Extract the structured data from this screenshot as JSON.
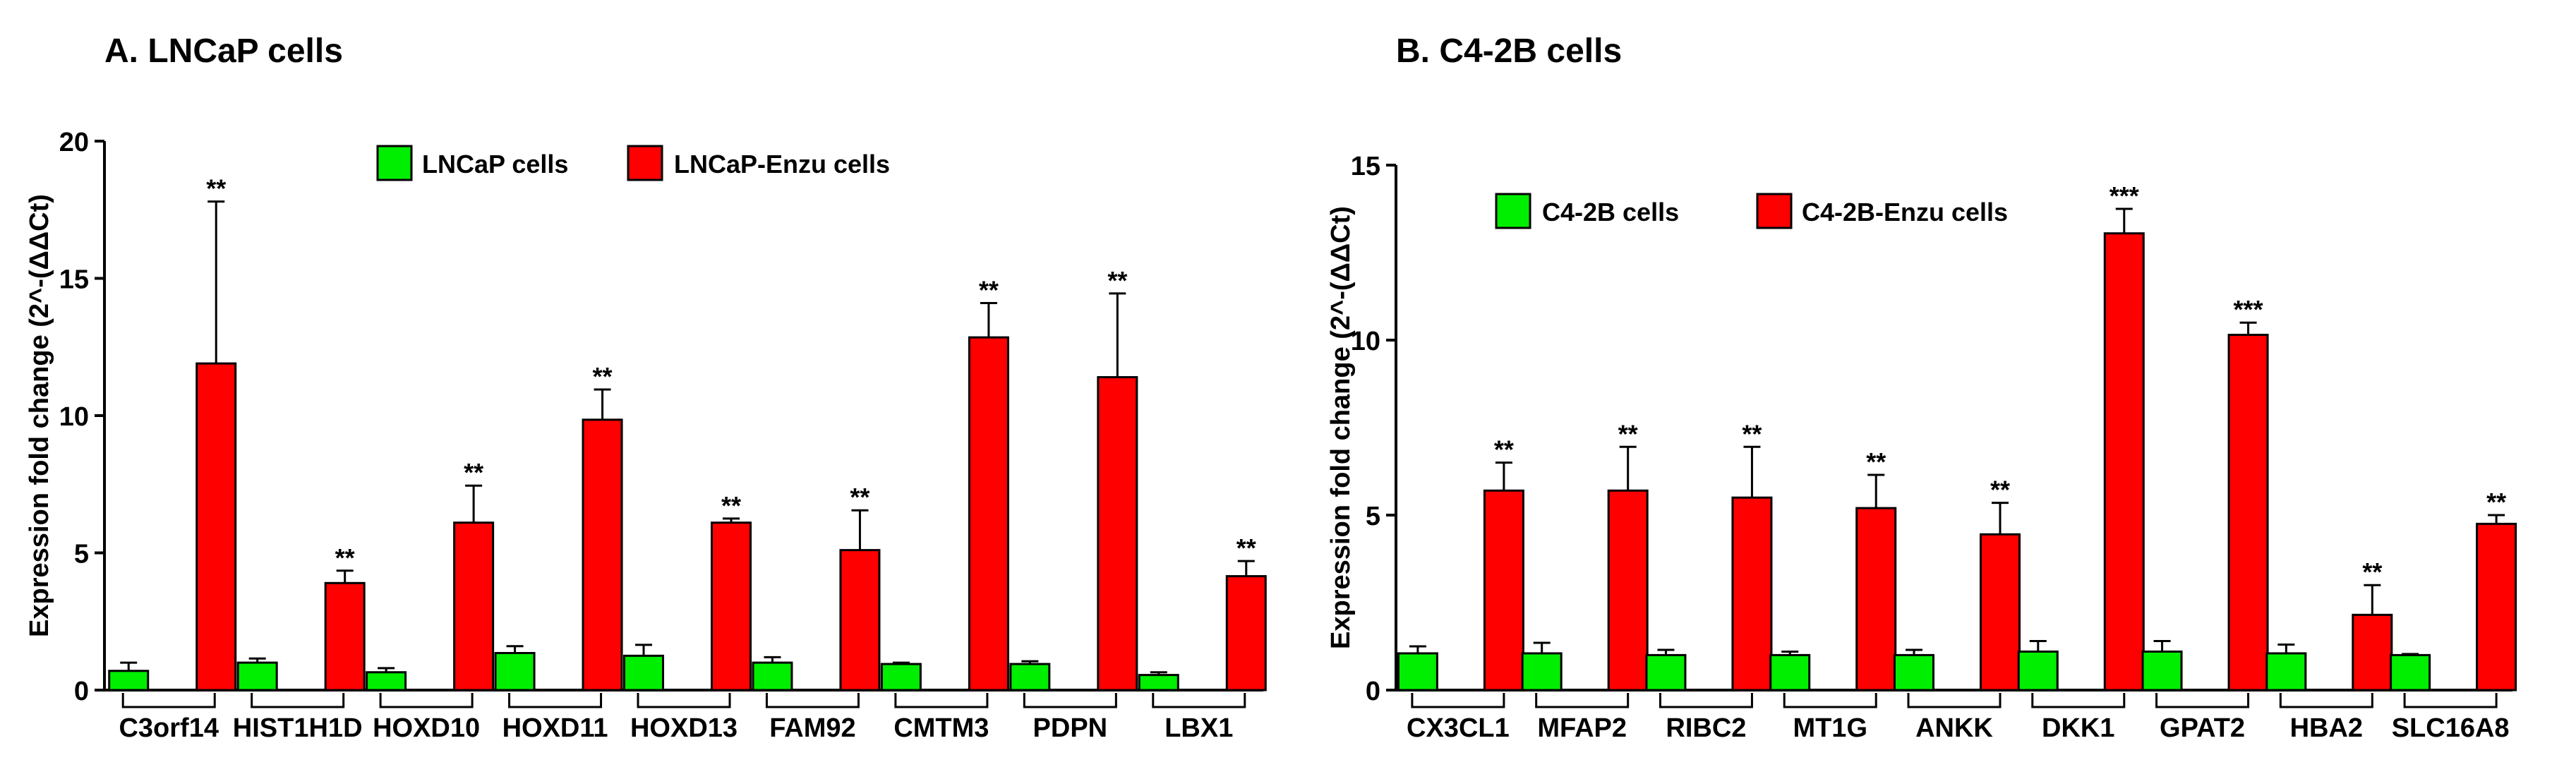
{
  "panels": [
    {
      "title": "A. LNCaP  cells",
      "chart_data": {
        "type": "bar",
        "title": "A. LNCaP  cells",
        "xlabel": "",
        "ylabel": "Expression fold change (2^-(ΔΔCt)",
        "ylim": [
          0,
          20
        ],
        "yticks": [
          0,
          5,
          10,
          15,
          20
        ],
        "grid": false,
        "legend_position": "top",
        "categories": [
          "C3orf14",
          "HIST1H1D",
          "HOXD10",
          "HOXD11",
          "HOXD13",
          "FAM92",
          "CMTM3",
          "PDPN",
          "LBX1"
        ],
        "series": [
          {
            "name": "LNCaP cells",
            "color": "#00ee00",
            "values": [
              0.7,
              1.0,
              0.65,
              1.35,
              1.25,
              1.0,
              0.95,
              0.95,
              0.55
            ],
            "errors": [
              0.3,
              0.15,
              0.15,
              0.25,
              0.4,
              0.2,
              0.05,
              0.1,
              0.1
            ]
          },
          {
            "name": "LNCaP-Enzu cells",
            "color": "#ff0000",
            "values": [
              11.9,
              3.9,
              6.1,
              9.85,
              6.1,
              5.1,
              12.85,
              11.4,
              4.15
            ],
            "errors": [
              5.9,
              0.45,
              1.35,
              1.1,
              0.15,
              1.45,
              1.25,
              3.05,
              0.55
            ]
          }
        ],
        "significance": [
          "**",
          "**",
          "**",
          "**",
          "**",
          "**",
          "**",
          "**",
          "**"
        ]
      }
    },
    {
      "title": "B. C4-2B  cells",
      "chart_data": {
        "type": "bar",
        "title": "B. C4-2B  cells",
        "xlabel": "",
        "ylabel": "Expression fold change (2^-(ΔΔCt)",
        "ylim": [
          0,
          15
        ],
        "yticks": [
          0,
          5,
          10,
          15
        ],
        "grid": false,
        "legend_position": "top-left",
        "categories": [
          "CX3CL1",
          "MFAP2",
          "RIBC2",
          "MT1G",
          "ANKK",
          "DKK1",
          "GPAT2",
          "HBA2",
          "SLC16A8"
        ],
        "series": [
          {
            "name": "C4-2B cells",
            "color": "#00ee00",
            "values": [
              1.05,
              1.05,
              1.0,
              1.0,
              1.0,
              1.1,
              1.1,
              1.05,
              1.0
            ],
            "errors": [
              0.2,
              0.3,
              0.15,
              0.1,
              0.15,
              0.3,
              0.3,
              0.25,
              0.03
            ]
          },
          {
            "name": "C4-2B-Enzu cells",
            "color": "#ff0000",
            "values": [
              5.7,
              5.7,
              5.5,
              5.2,
              4.45,
              13.05,
              10.15,
              2.15,
              4.75
            ],
            "errors": [
              0.8,
              1.25,
              1.45,
              0.95,
              0.9,
              0.7,
              0.35,
              0.85,
              0.25
            ]
          }
        ],
        "significance": [
          "**",
          "**",
          "**",
          "**",
          "**",
          "***",
          "***",
          "**",
          "**"
        ]
      }
    }
  ]
}
